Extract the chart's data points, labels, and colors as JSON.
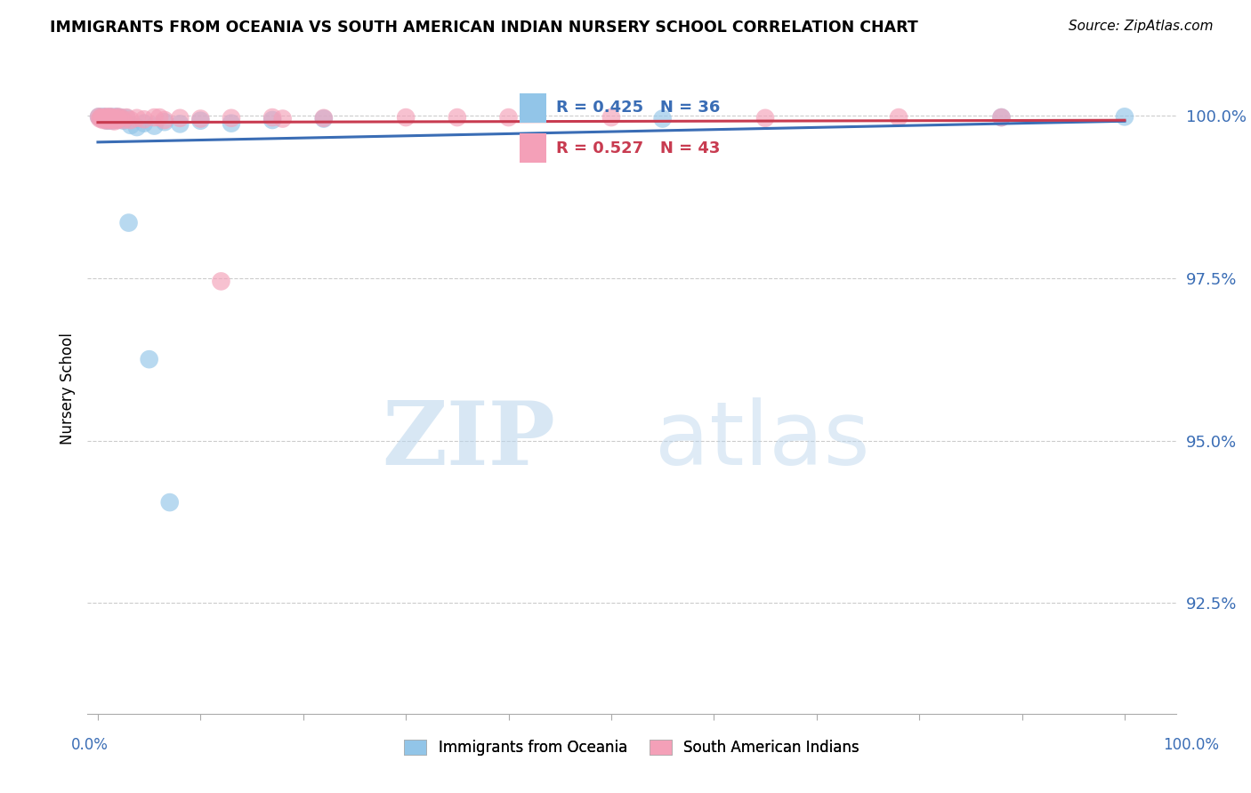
{
  "title": "IMMIGRANTS FROM OCEANIA VS SOUTH AMERICAN INDIAN NURSERY SCHOOL CORRELATION CHART",
  "source": "Source: ZipAtlas.com",
  "ylabel": "Nursery School",
  "y_ticks_labels": [
    "92.5%",
    "95.0%",
    "97.5%",
    "100.0%"
  ],
  "y_ticks_values": [
    0.925,
    0.95,
    0.975,
    1.0
  ],
  "ylim": [
    0.908,
    1.008
  ],
  "xlim": [
    -0.01,
    1.05
  ],
  "blue_color": "#92C5E8",
  "pink_color": "#F4A0B8",
  "blue_line_color": "#3A6DB5",
  "pink_line_color": "#C83B50",
  "legend_blue_r": "R = 0.425",
  "legend_blue_n": "N = 36",
  "legend_pink_r": "R = 0.527",
  "legend_pink_n": "N = 43",
  "blue_scatter_x": [
    0.001,
    0.003,
    0.004,
    0.005,
    0.006,
    0.007,
    0.008,
    0.009,
    0.01,
    0.011,
    0.012,
    0.013,
    0.014,
    0.015,
    0.016,
    0.018,
    0.02,
    0.022,
    0.025,
    0.028,
    0.032,
    0.038,
    0.045,
    0.055,
    0.065,
    0.08,
    0.1,
    0.13,
    0.17,
    0.22,
    0.03,
    0.05,
    0.07,
    0.55,
    0.88,
    1.0
  ],
  "blue_scatter_y": [
    0.9998,
    0.9996,
    0.9997,
    0.9995,
    0.9998,
    0.9994,
    0.9996,
    0.9992,
    0.9995,
    0.9993,
    0.9998,
    0.9995,
    0.9992,
    0.9997,
    0.9994,
    0.9998,
    0.9993,
    0.9997,
    0.9992,
    0.9996,
    0.9985,
    0.9982,
    0.9988,
    0.9984,
    0.999,
    0.9987,
    0.9992,
    0.9988,
    0.9993,
    0.9995,
    0.9835,
    0.9625,
    0.9405,
    0.9995,
    0.9997,
    0.9998
  ],
  "pink_scatter_x": [
    0.001,
    0.002,
    0.003,
    0.004,
    0.005,
    0.006,
    0.007,
    0.008,
    0.009,
    0.01,
    0.011,
    0.012,
    0.013,
    0.014,
    0.015,
    0.016,
    0.017,
    0.018,
    0.019,
    0.02,
    0.022,
    0.025,
    0.028,
    0.032,
    0.038,
    0.045,
    0.055,
    0.065,
    0.08,
    0.1,
    0.13,
    0.17,
    0.22,
    0.3,
    0.4,
    0.5,
    0.65,
    0.78,
    0.88,
    0.35,
    0.06,
    0.12,
    0.18
  ],
  "pink_scatter_y": [
    0.9998,
    0.9995,
    0.9997,
    0.9996,
    0.9993,
    0.9997,
    0.9994,
    0.9998,
    0.9992,
    0.9996,
    0.9994,
    0.9998,
    0.9993,
    0.9997,
    0.9995,
    0.9991,
    0.9996,
    0.9993,
    0.9998,
    0.9994,
    0.9997,
    0.9993,
    0.9997,
    0.9993,
    0.9996,
    0.9994,
    0.9997,
    0.9993,
    0.9996,
    0.9995,
    0.9996,
    0.9997,
    0.9996,
    0.9997,
    0.9997,
    0.9997,
    0.9996,
    0.9997,
    0.9997,
    0.9997,
    0.9997,
    0.9745,
    0.9995
  ]
}
